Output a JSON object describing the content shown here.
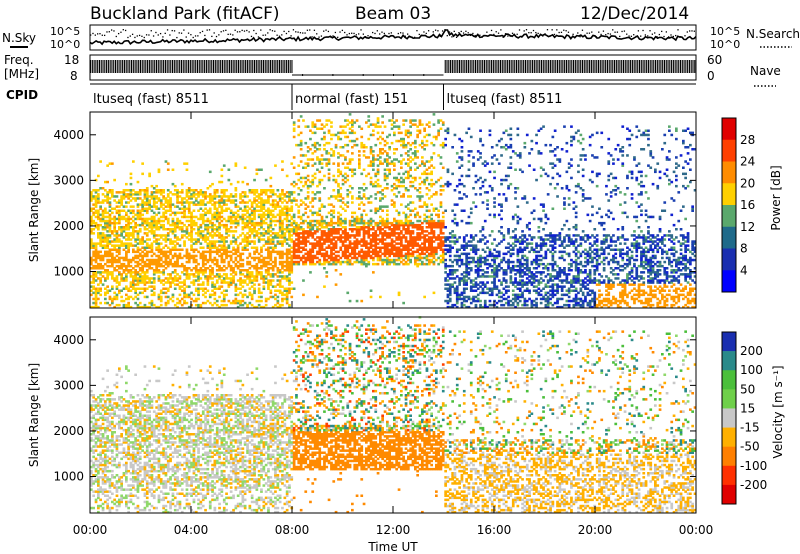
{
  "header": {
    "title": "Buckland Park (fitACF)",
    "beam": "Beam 03",
    "date": "12/Dec/2014"
  },
  "noise_panel": {
    "left_label": "N.Sky",
    "right_label": "N.Search",
    "left_ticks": [
      "10^5",
      "10^0"
    ],
    "right_ticks": [
      "10^5",
      "10^0"
    ]
  },
  "freq_panel": {
    "left_label_1": "Freq.",
    "left_label_2": "[MHz]",
    "left_ticks": [
      "18",
      "8"
    ],
    "right_label": "Nave",
    "right_ticks": [
      "60",
      "0"
    ]
  },
  "cpid_panel": {
    "label": "CPID",
    "segments": [
      {
        "name": "ltuseq (fast) 8511",
        "start_h": 0,
        "end_h": 8
      },
      {
        "name": "normal (fast) 151",
        "start_h": 8,
        "end_h": 14
      },
      {
        "name": "ltuseq (fast) 8511",
        "start_h": 14,
        "end_h": 24
      }
    ]
  },
  "power_panel": {
    "ylabel": "Slant Range [km]",
    "yticks": [
      "4000",
      "3000",
      "2000",
      "1000"
    ],
    "colorbar_label": "Power [dB]",
    "colorbar_ticks": [
      "28",
      "24",
      "20",
      "16",
      "12",
      "8",
      "4"
    ],
    "colorbar_colors": [
      "#e00000",
      "#ff4000",
      "#ff8c00",
      "#ffd000",
      "#5aa86c",
      "#1f6a8a",
      "#1a2fb0",
      "#0000ff"
    ]
  },
  "velocity_panel": {
    "ylabel": "Slant Range [km]",
    "yticks": [
      "4000",
      "3000",
      "2000",
      "1000"
    ],
    "colorbar_label": "Velocity [m s⁻¹]",
    "colorbar_ticks": [
      "200",
      "100",
      "50",
      "15",
      "-15",
      "-50",
      "-100",
      "-200"
    ],
    "colorbar_colors": [
      "#1a2fb0",
      "#2a8a8a",
      "#4bbf3b",
      "#6fd04a",
      "#c8c8c8",
      "#ffb000",
      "#ff7f00",
      "#ff3000",
      "#e00000"
    ]
  },
  "xaxis": {
    "label": "Time UT",
    "ticks": [
      "00:00",
      "04:00",
      "08:00",
      "12:00",
      "16:00",
      "20:00",
      "00:00"
    ]
  },
  "chart_data": {
    "type": "heatmap",
    "title": "Buckland Park (fitACF)",
    "subtitle": "Beam 03 · 12/Dec/2014",
    "x_range_hours": [
      0,
      24
    ],
    "xlabel": "Time UT",
    "ylabel": "Slant Range [km]",
    "ylim_km": [
      200,
      4500
    ],
    "panels": [
      {
        "name": "Power",
        "unit": "dB",
        "colorbar_range": [
          0,
          30
        ],
        "colorbar_ticks": [
          4,
          8,
          12,
          16,
          20,
          24,
          28
        ],
        "features": [
          {
            "t_start_h": 0,
            "t_end_h": 8,
            "range_km": [
              800,
              2800
            ],
            "typical_db": 18
          },
          {
            "t_start_h": 8,
            "t_end_h": 14,
            "range_km": [
              1100,
              2000
            ],
            "typical_db": 28
          },
          {
            "t_start_h": 14,
            "t_end_h": 24,
            "range_km": [
              300,
              1800
            ],
            "typical_db": 8
          }
        ]
      },
      {
        "name": "Velocity",
        "unit": "m s-1",
        "colorbar_range": [
          -250,
          250
        ],
        "colorbar_ticks": [
          200,
          100,
          50,
          15,
          -15,
          -50,
          -100,
          -200
        ],
        "features": [
          {
            "t_start_h": 0,
            "t_end_h": 8,
            "range_km": [
              600,
              2600
            ],
            "typical_ms": 0
          },
          {
            "t_start_h": 8,
            "t_end_h": 14,
            "range_km": [
              1200,
              1800
            ],
            "typical_ms": -60
          },
          {
            "t_start_h": 14,
            "t_end_h": 24,
            "range_km": [
              300,
              1500
            ],
            "typical_ms": -20
          }
        ]
      }
    ]
  }
}
